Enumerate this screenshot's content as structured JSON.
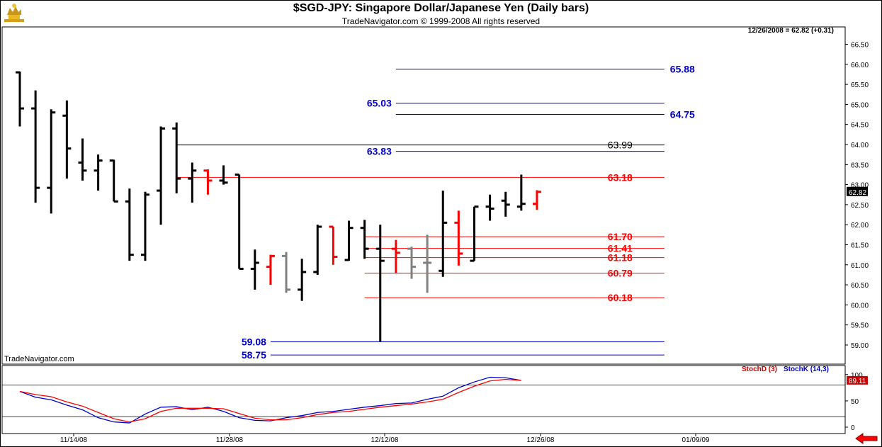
{
  "header": {
    "title": "$SGD-JPY:  Singapore Dollar/Japanese Yen  (Daily bars)",
    "subtitle": "TradeNavigator.com © 1999-2008 All rights reserved",
    "last_info": "12/26/2008 = 62.82 (+0.31)",
    "watermark": "TradeNavigator.com",
    "logo_icon": "bull-bear-logo-icon"
  },
  "colors": {
    "up_bar": "#000000",
    "down_bar": "#ff0000",
    "gray_bar": "#808080",
    "blue_level": "#0000cc",
    "red_level": "#ff0000",
    "black_level": "#000000",
    "stochK": "#0000cc",
    "stochD": "#cc0000"
  },
  "chart_data": [
    {
      "type": "ohlc",
      "ylim": [
        58.6,
        66.85
      ],
      "yticks": [
        "59.00",
        "59.50",
        "60.00",
        "60.50",
        "61.00",
        "61.50",
        "62.00",
        "62.50",
        "63.00",
        "63.50",
        "64.00",
        "64.50",
        "65.00",
        "65.50",
        "66.00",
        "66.50"
      ],
      "xticks": [
        "11/14/08",
        "11/28/08",
        "12/12/08",
        "12/26/08",
        "01/09/09"
      ],
      "last_price_label": "62.82",
      "bars": [
        {
          "o": 65.8,
          "h": 65.82,
          "l": 64.45,
          "c": 64.9,
          "color": "black"
        },
        {
          "o": 64.9,
          "h": 65.35,
          "l": 62.55,
          "c": 62.92,
          "color": "black"
        },
        {
          "o": 62.92,
          "h": 64.88,
          "l": 62.28,
          "c": 64.8,
          "color": "black"
        },
        {
          "o": 64.72,
          "h": 65.1,
          "l": 63.15,
          "c": 63.9,
          "color": "black"
        },
        {
          "o": 63.55,
          "h": 64.15,
          "l": 63.1,
          "c": 63.35,
          "color": "black"
        },
        {
          "o": 63.35,
          "h": 63.75,
          "l": 62.85,
          "c": 63.6,
          "color": "black"
        },
        {
          "o": 63.6,
          "h": 63.62,
          "l": 62.58,
          "c": 62.58,
          "color": "black"
        },
        {
          "o": 62.58,
          "h": 62.9,
          "l": 61.1,
          "c": 61.25,
          "color": "black"
        },
        {
          "o": 61.25,
          "h": 62.82,
          "l": 61.1,
          "c": 62.75,
          "color": "black"
        },
        {
          "o": 62.85,
          "h": 64.45,
          "l": 62.0,
          "c": 64.4,
          "color": "black"
        },
        {
          "o": 64.4,
          "h": 64.55,
          "l": 62.78,
          "c": 63.15,
          "color": "black"
        },
        {
          "o": 63.15,
          "h": 63.55,
          "l": 62.55,
          "c": 63.35,
          "color": "black"
        },
        {
          "o": 63.35,
          "h": 63.38,
          "l": 62.75,
          "c": 63.1,
          "color": "red"
        },
        {
          "o": 63.1,
          "h": 63.48,
          "l": 63.0,
          "c": 63.05,
          "color": "black"
        },
        {
          "o": 63.25,
          "h": 63.25,
          "l": 60.9,
          "c": 60.9,
          "color": "black"
        },
        {
          "o": 60.9,
          "h": 61.38,
          "l": 60.38,
          "c": 61.05,
          "color": "black"
        },
        {
          "o": 60.95,
          "h": 61.25,
          "l": 60.5,
          "c": 61.22,
          "color": "red"
        },
        {
          "o": 61.22,
          "h": 61.32,
          "l": 60.3,
          "c": 60.38,
          "color": "gray"
        },
        {
          "o": 60.38,
          "h": 61.15,
          "l": 60.1,
          "c": 60.82,
          "color": "black"
        },
        {
          "o": 60.82,
          "h": 62.0,
          "l": 60.75,
          "c": 61.95,
          "color": "black"
        },
        {
          "o": 61.95,
          "h": 61.95,
          "l": 61.0,
          "c": 61.2,
          "color": "red"
        },
        {
          "o": 61.12,
          "h": 62.1,
          "l": 61.1,
          "c": 61.92,
          "color": "black"
        },
        {
          "o": 61.92,
          "h": 62.12,
          "l": 61.15,
          "c": 61.4,
          "color": "black"
        },
        {
          "o": 61.4,
          "h": 62.0,
          "l": 59.08,
          "c": 61.1,
          "color": "black"
        },
        {
          "o": 61.4,
          "h": 61.62,
          "l": 60.8,
          "c": 61.3,
          "color": "red"
        },
        {
          "o": 61.4,
          "h": 61.45,
          "l": 60.65,
          "c": 60.95,
          "color": "gray"
        },
        {
          "o": 61.05,
          "h": 61.75,
          "l": 60.3,
          "c": 61.05,
          "color": "gray"
        },
        {
          "o": 60.85,
          "h": 62.85,
          "l": 60.7,
          "c": 62.05,
          "color": "black"
        },
        {
          "o": 62.05,
          "h": 62.35,
          "l": 60.98,
          "c": 61.28,
          "color": "red"
        },
        {
          "o": 61.1,
          "h": 62.45,
          "l": 61.1,
          "c": 62.45,
          "color": "black"
        },
        {
          "o": 62.45,
          "h": 62.75,
          "l": 62.1,
          "c": 62.4,
          "color": "black"
        },
        {
          "o": 62.6,
          "h": 62.82,
          "l": 62.2,
          "c": 62.5,
          "color": "black"
        },
        {
          "o": 62.45,
          "h": 63.25,
          "l": 62.35,
          "c": 62.52,
          "color": "black"
        },
        {
          "o": 62.52,
          "h": 62.86,
          "l": 62.37,
          "c": 62.82,
          "color": "red"
        }
      ],
      "levels": [
        {
          "value": 65.88,
          "label": "65.88",
          "color": "blue",
          "x_from": 24,
          "x_to": 40,
          "label_side": "right"
        },
        {
          "value": 65.03,
          "label": "65.03",
          "color": "blue",
          "x_from": 24,
          "x_to": 40,
          "label_side": "left"
        },
        {
          "value": 64.75,
          "label": "64.75",
          "color": "blue",
          "x_from": 24,
          "x_to": 40,
          "label_side": "right"
        },
        {
          "value": 63.99,
          "label": "63.99",
          "color": "black",
          "x_from": 10,
          "x_to": 40,
          "label_side": "mid"
        },
        {
          "value": 63.83,
          "label": "63.83",
          "color": "blue",
          "x_from": 24,
          "x_to": 40,
          "label_side": "left"
        },
        {
          "value": 63.18,
          "label": "63.18",
          "color": "red",
          "x_from": 10,
          "x_to": 40,
          "label_side": "mid"
        },
        {
          "value": 61.7,
          "label": "61.70",
          "color": "red",
          "x_from": 22,
          "x_to": 40,
          "label_side": "mid"
        },
        {
          "value": 61.41,
          "label": "61.41",
          "color": "red",
          "x_from": 22,
          "x_to": 40,
          "label_side": "mid"
        },
        {
          "value": 61.18,
          "label": "61.18",
          "color": "red",
          "x_from": 22,
          "x_to": 40,
          "label_side": "mid"
        },
        {
          "value": 60.79,
          "label": "60.79",
          "color": "red",
          "x_from": 22,
          "x_to": 40,
          "label_side": "mid"
        },
        {
          "value": 60.18,
          "label": "60.18",
          "color": "red",
          "x_from": 22,
          "x_to": 40,
          "label_side": "mid"
        },
        {
          "value": 59.08,
          "label": "59.08",
          "color": "blue",
          "x_from": 16,
          "x_to": 40,
          "label_side": "left"
        },
        {
          "value": 58.75,
          "label": "58.75",
          "color": "blue",
          "x_from": 16,
          "x_to": 40,
          "label_side": "left"
        }
      ]
    },
    {
      "type": "line",
      "ylim": [
        0,
        100
      ],
      "yticks": [
        "0",
        "50",
        "100"
      ],
      "reference_lines": [
        20,
        80
      ],
      "last_value_label": "89.11",
      "series": [
        {
          "name": "StochK (14,3)",
          "color": "blue",
          "values": [
            68,
            57,
            52,
            42,
            33,
            18,
            10,
            8,
            25,
            38,
            39,
            33,
            38,
            30,
            18,
            13,
            12,
            18,
            22,
            28,
            30,
            34,
            38,
            41,
            45,
            46,
            53,
            59,
            75,
            86,
            95,
            94,
            89
          ]
        },
        {
          "name": "StochD (3)",
          "color": "red",
          "values": [
            68,
            62,
            58,
            48,
            40,
            28,
            16,
            10,
            16,
            30,
            36,
            36,
            36,
            35,
            26,
            17,
            14,
            14,
            18,
            24,
            28,
            30,
            34,
            38,
            41,
            44,
            48,
            53,
            66,
            78,
            88,
            91,
            89
          ]
        }
      ],
      "legend": [
        "StochD (3)",
        "StochK (14,3)"
      ]
    }
  ]
}
